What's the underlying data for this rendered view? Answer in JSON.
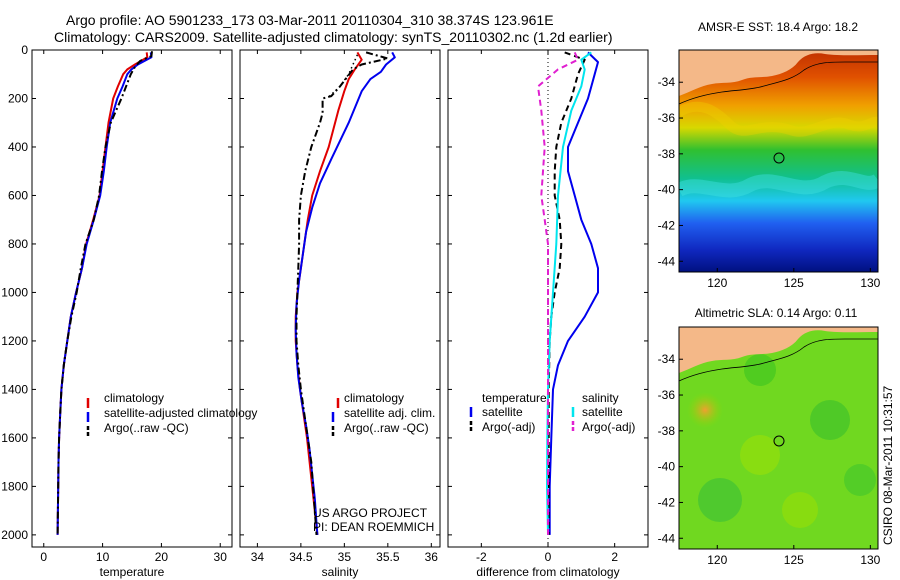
{
  "header": {
    "title_line1": "Argo profile: AO 5901233_173 03-Mar-2011 20110304_310 38.374S 123.961E",
    "title_line2": "Climatology: CARS2009. Satellite-adjusted climatology: synTS_20110302.nc (1.2d earlier)"
  },
  "side_label": "CSIRO 08-Mar-2011 10:31:57",
  "project_note": {
    "line1": "US ARGO PROJECT",
    "line2": "PI: DEAN ROEMMICH"
  },
  "colors": {
    "climatology": "#e00000",
    "satellite": "#0000ee",
    "argo": "#000000",
    "salinity_sat": "#00e5ee",
    "salinity_argo": "#e020d0"
  },
  "chart_data": [
    {
      "type": "line",
      "id": "temperature",
      "xlabel": "temperature",
      "xlim": [
        -2,
        32
      ],
      "xticks": [
        0,
        10,
        20,
        30
      ],
      "ylim": [
        2050,
        0
      ],
      "yticks": [
        0,
        200,
        400,
        600,
        800,
        1000,
        1200,
        1400,
        1600,
        1800,
        2000
      ],
      "legend": [
        "climatology",
        "satellite-adjusted climatology",
        "Argo(..raw -QC)"
      ],
      "series": [
        {
          "name": "climatology",
          "style": "solid",
          "color": "#e00000",
          "points": [
            [
              17.5,
              10
            ],
            [
              17.6,
              30
            ],
            [
              15.5,
              60
            ],
            [
              14.2,
              80
            ],
            [
              13.5,
              100
            ],
            [
              12.6,
              150
            ],
            [
              11.8,
              200
            ],
            [
              11,
              300
            ],
            [
              10.5,
              400
            ],
            [
              10,
              500
            ],
            [
              9.5,
              600
            ],
            [
              8.4,
              700
            ],
            [
              7.2,
              800
            ],
            [
              6.5,
              900
            ],
            [
              5.5,
              1000
            ],
            [
              4.6,
              1100
            ],
            [
              4,
              1200
            ],
            [
              3.4,
              1300
            ],
            [
              3,
              1400
            ],
            [
              2.8,
              1500
            ],
            [
              2.6,
              1600
            ],
            [
              2.5,
              1700
            ],
            [
              2.45,
              1800
            ],
            [
              2.4,
              1900
            ],
            [
              2.35,
              2000
            ]
          ]
        },
        {
          "name": "satellite-adjusted climatology",
          "style": "solid",
          "color": "#0000ee",
          "points": [
            [
              18.2,
              10
            ],
            [
              18.3,
              30
            ],
            [
              16,
              60
            ],
            [
              14.9,
              80
            ],
            [
              14.2,
              100
            ],
            [
              13.4,
              150
            ],
            [
              12.5,
              200
            ],
            [
              11.3,
              300
            ],
            [
              10.7,
              400
            ],
            [
              10.2,
              500
            ],
            [
              9.6,
              600
            ],
            [
              8.5,
              700
            ],
            [
              7.3,
              800
            ],
            [
              6.5,
              900
            ],
            [
              5.5,
              1000
            ],
            [
              4.6,
              1100
            ],
            [
              4,
              1200
            ],
            [
              3.4,
              1300
            ],
            [
              3,
              1400
            ],
            [
              2.8,
              1500
            ],
            [
              2.6,
              1600
            ],
            [
              2.5,
              1700
            ],
            [
              2.45,
              1800
            ],
            [
              2.4,
              1900
            ],
            [
              2.35,
              2000
            ]
          ]
        },
        {
          "name": "Argo(..raw -QC)",
          "style": "dashdot",
          "color": "#000000",
          "points": [
            [
              18.4,
              5
            ],
            [
              18.3,
              25
            ],
            [
              16.4,
              45
            ],
            [
              15.5,
              70
            ],
            [
              14.8,
              100
            ],
            [
              14,
              150
            ],
            [
              13.2,
              200
            ],
            [
              11.4,
              300
            ],
            [
              10.5,
              400
            ],
            [
              9.9,
              500
            ],
            [
              9.4,
              600
            ],
            [
              8.5,
              700
            ],
            [
              7.1,
              800
            ],
            [
              6.3,
              900
            ],
            [
              5.6,
              1000
            ],
            [
              4.7,
              1100
            ],
            [
              4,
              1200
            ],
            [
              3.4,
              1300
            ],
            [
              3,
              1400
            ],
            [
              2.8,
              1500
            ],
            [
              2.6,
              1600
            ],
            [
              2.5,
              1700
            ],
            [
              2.45,
              1800
            ],
            [
              2.4,
              1900
            ],
            [
              2.35,
              2000
            ]
          ]
        }
      ]
    },
    {
      "type": "line",
      "id": "salinity",
      "xlabel": "salinity",
      "xlim": [
        33.8,
        36.1
      ],
      "xticks": [
        34,
        34.5,
        35,
        35.5,
        36
      ],
      "ylim": [
        2050,
        0
      ],
      "yticks": [
        0,
        200,
        400,
        600,
        800,
        1000,
        1200,
        1400,
        1600,
        1800,
        2000
      ],
      "legend": [
        "climatology",
        "satellite adj. clim.",
        "Argo(..raw -QC)"
      ],
      "series": [
        {
          "name": "climatology",
          "style": "solid",
          "color": "#e00000",
          "points": [
            [
              35.15,
              10
            ],
            [
              35.2,
              40
            ],
            [
              35.12,
              80
            ],
            [
              35.05,
              120
            ],
            [
              35,
              170
            ],
            [
              34.93,
              250
            ],
            [
              34.82,
              400
            ],
            [
              34.72,
              500
            ],
            [
              34.63,
              600
            ],
            [
              34.58,
              700
            ],
            [
              34.54,
              800
            ],
            [
              34.5,
              900
            ],
            [
              34.46,
              1000
            ],
            [
              34.44,
              1100
            ],
            [
              34.44,
              1200
            ],
            [
              34.46,
              1300
            ],
            [
              34.49,
              1400
            ],
            [
              34.53,
              1500
            ],
            [
              34.57,
              1600
            ],
            [
              34.6,
              1700
            ],
            [
              34.63,
              1800
            ],
            [
              34.66,
              1900
            ],
            [
              34.69,
              2000
            ]
          ]
        },
        {
          "name": "satellite adj. clim.",
          "style": "solid",
          "color": "#0000ee",
          "points": [
            [
              35.55,
              10
            ],
            [
              35.58,
              30
            ],
            [
              35.48,
              60
            ],
            [
              35.42,
              90
            ],
            [
              35.3,
              120
            ],
            [
              35.2,
              170
            ],
            [
              35.05,
              300
            ],
            [
              34.85,
              450
            ],
            [
              34.72,
              550
            ],
            [
              34.63,
              650
            ],
            [
              34.56,
              750
            ],
            [
              34.52,
              850
            ],
            [
              34.48,
              950
            ],
            [
              34.45,
              1050
            ],
            [
              34.44,
              1150
            ],
            [
              34.45,
              1250
            ],
            [
              34.47,
              1350
            ],
            [
              34.51,
              1450
            ],
            [
              34.56,
              1550
            ],
            [
              34.6,
              1650
            ],
            [
              34.63,
              1750
            ],
            [
              34.66,
              1850
            ],
            [
              34.68,
              1950
            ],
            [
              34.69,
              2000
            ]
          ]
        },
        {
          "name": "Argo(..raw -QC)",
          "style": "dashdot",
          "color": "#000000",
          "points": [
            [
              35.25,
              10
            ],
            [
              35.5,
              35
            ],
            [
              35.2,
              60
            ],
            [
              35.1,
              80
            ],
            [
              34.95,
              150
            ],
            [
              34.85,
              190
            ],
            [
              34.75,
              200
            ],
            [
              34.75,
              260
            ],
            [
              34.72,
              300
            ],
            [
              34.62,
              400
            ],
            [
              34.55,
              500
            ],
            [
              34.5,
              600
            ],
            [
              34.48,
              700
            ],
            [
              34.48,
              800
            ],
            [
              34.47,
              900
            ],
            [
              34.46,
              1000
            ],
            [
              34.45,
              1100
            ],
            [
              34.45,
              1200
            ],
            [
              34.47,
              1300
            ],
            [
              34.5,
              1400
            ],
            [
              34.54,
              1500
            ],
            [
              34.58,
              1600
            ],
            [
              34.62,
              1700
            ],
            [
              34.64,
              1800
            ],
            [
              34.66,
              1900
            ],
            [
              34.68,
              2000
            ]
          ]
        }
      ],
      "markers": [
        {
          "name": "Argo dotted",
          "style": "dotted",
          "color": "#000000",
          "points": [
            [
              35.15,
              20
            ],
            [
              35.1,
              60
            ],
            [
              35.05,
              100
            ],
            [
              34.95,
              150
            ],
            [
              34.8,
              200
            ]
          ]
        }
      ]
    },
    {
      "type": "line",
      "id": "difference",
      "xlabel": "difference from climatology",
      "xlim": [
        -3,
        3
      ],
      "xticks": [
        -2,
        0,
        2
      ],
      "ylim": [
        2050,
        0
      ],
      "yticks": [
        0,
        200,
        400,
        600,
        800,
        1000,
        1200,
        1400,
        1600,
        1800,
        2000
      ],
      "legend_headers": [
        "temperature",
        "salinity"
      ],
      "legend": [
        "satellite",
        "Argo(-adj)",
        "satellite",
        "Argo(-adj)"
      ],
      "series": [
        {
          "name": "temperature satellite",
          "style": "solid",
          "color": "#0000ee",
          "points": [
            [
              1.2,
              10
            ],
            [
              1.5,
              50
            ],
            [
              1.4,
              100
            ],
            [
              1.2,
              200
            ],
            [
              0.9,
              300
            ],
            [
              0.6,
              400
            ],
            [
              0.6,
              500
            ],
            [
              0.8,
              600
            ],
            [
              1,
              700
            ],
            [
              1.3,
              800
            ],
            [
              1.5,
              900
            ],
            [
              1.5,
              1000
            ],
            [
              1.1,
              1100
            ],
            [
              0.6,
              1200
            ],
            [
              0.3,
              1300
            ],
            [
              0.15,
              1400
            ],
            [
              0.1,
              1600
            ],
            [
              0.05,
              1800
            ],
            [
              0.05,
              2000
            ]
          ]
        },
        {
          "name": "temperature Argo(-adj)",
          "style": "dashed",
          "color": "#000000",
          "points": [
            [
              0.5,
              10
            ],
            [
              1.1,
              40
            ],
            [
              0.9,
              100
            ],
            [
              0.7,
              200
            ],
            [
              0.4,
              300
            ],
            [
              0.25,
              400
            ],
            [
              0.2,
              500
            ],
            [
              0.2,
              600
            ],
            [
              0.35,
              700
            ],
            [
              0.4,
              800
            ],
            [
              0.35,
              900
            ],
            [
              0.2,
              1000
            ],
            [
              0.1,
              1100
            ],
            [
              0.05,
              1200
            ],
            [
              0.02,
              1400
            ],
            [
              0.02,
              2000
            ]
          ]
        },
        {
          "name": "salinity satellite",
          "style": "solid",
          "color": "#00e5ee",
          "points": [
            [
              1.3,
              10
            ],
            [
              1,
              40
            ],
            [
              1.1,
              80
            ],
            [
              1,
              150
            ],
            [
              0.7,
              250
            ],
            [
              0.45,
              400
            ],
            [
              0.3,
              600
            ],
            [
              0.25,
              800
            ],
            [
              0.15,
              1000
            ],
            [
              0.05,
              1200
            ],
            [
              0,
              1400
            ],
            [
              -0.02,
              1600
            ],
            [
              -0.03,
              1800
            ],
            [
              0,
              2000
            ]
          ]
        },
        {
          "name": "salinity Argo(-adj)",
          "style": "dashed",
          "color": "#e020d0",
          "points": [
            [
              0.8,
              10
            ],
            [
              0.9,
              40
            ],
            [
              0.3,
              80
            ],
            [
              -0.3,
              150
            ],
            [
              -0.2,
              250
            ],
            [
              -0.1,
              400
            ],
            [
              -0.15,
              500
            ],
            [
              -0.2,
              600
            ],
            [
              -0.1,
              700
            ],
            [
              0,
              800
            ],
            [
              0,
              2000
            ]
          ]
        }
      ],
      "zero_line": 0
    },
    {
      "type": "heatmap",
      "id": "sst_map",
      "title": "AMSR-E SST: 18.4 Argo: 18.2",
      "xlim": [
        117.5,
        130.5
      ],
      "xticks": [
        120,
        125,
        130
      ],
      "ylim": [
        -44.6,
        -32.2
      ],
      "yticks": [
        -34,
        -36,
        -38,
        -40,
        -42,
        -44
      ],
      "argo_position": [
        123.961,
        -38.374
      ]
    },
    {
      "type": "heatmap",
      "id": "sla_map",
      "title": "Altimetric SLA: 0.14 Argo: 0.11",
      "xlim": [
        117.5,
        130.5
      ],
      "xticks": [
        120,
        125,
        130
      ],
      "ylim": [
        -44.6,
        -32.2
      ],
      "yticks": [
        -34,
        -36,
        -38,
        -40,
        -42,
        -44
      ],
      "argo_position": [
        123.961,
        -38.374
      ]
    }
  ]
}
